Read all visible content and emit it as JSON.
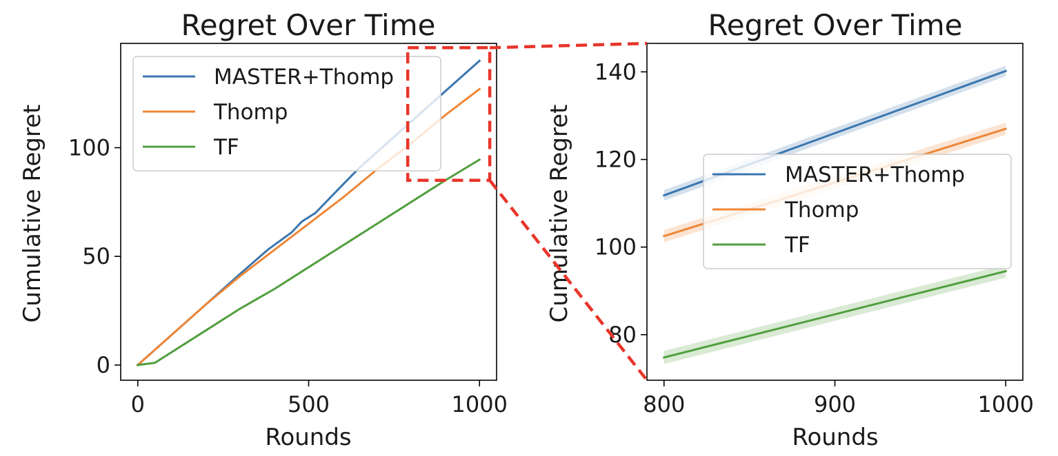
{
  "colors": {
    "series_0": "#3a76af",
    "series_1": "#ef8636",
    "series_2": "#519e3e",
    "zoom_box": "#e8352a"
  },
  "chart_data": [
    {
      "type": "line",
      "title": "Regret Over Time",
      "xlabel": "Rounds",
      "ylabel": "Cumulative Regret",
      "xlim": [
        -50,
        1050
      ],
      "ylim": [
        -7,
        148
      ],
      "xticks": [
        0,
        500,
        1000
      ],
      "yticks": [
        0,
        50,
        100
      ],
      "xtick_labels": [
        "0",
        "500",
        "1000"
      ],
      "ytick_labels": [
        "0",
        "50",
        "100"
      ],
      "grid": false,
      "legend": "upper-left",
      "zoom_region": {
        "x": [
          790,
          1030
        ],
        "y": [
          85,
          146
        ]
      },
      "series": [
        {
          "name": "MASTER+Thomp",
          "x": [
            0,
            100,
            200,
            300,
            380,
            450,
            480,
            520,
            600,
            650,
            700,
            800,
            900,
            1000
          ],
          "y": [
            0,
            14,
            28,
            42,
            53,
            61,
            66,
            70,
            83,
            91,
            98,
            112,
            126,
            140
          ]
        },
        {
          "name": "Thomp",
          "x": [
            0,
            100,
            200,
            300,
            400,
            500,
            600,
            700,
            800,
            900,
            1000
          ],
          "y": [
            0,
            14,
            28,
            41,
            53,
            65,
            77,
            90,
            102,
            115,
            127
          ]
        },
        {
          "name": "TF",
          "x": [
            0,
            50,
            100,
            200,
            300,
            400,
            500,
            600,
            700,
            800,
            900,
            1000
          ],
          "y": [
            0,
            1,
            6,
            16,
            26,
            35,
            45,
            55,
            65,
            75,
            85,
            94.5
          ]
        }
      ]
    },
    {
      "type": "line",
      "title": "Regret Over Time",
      "xlabel": "Rounds",
      "ylabel": "Cumulative Regret",
      "xlim": [
        790,
        1010
      ],
      "ylim": [
        69.6,
        146.5
      ],
      "xticks": [
        800,
        900,
        1000
      ],
      "yticks": [
        80,
        100,
        120,
        140
      ],
      "xtick_labels": [
        "800",
        "900",
        "1000"
      ],
      "ytick_labels": [
        "80",
        "100",
        "120",
        "140"
      ],
      "grid": false,
      "legend": "center-right",
      "band": true,
      "series": [
        {
          "name": "MASTER+Thomp",
          "x": [
            800,
            1000
          ],
          "y": [
            111.8,
            140.2
          ],
          "band_half_width": 1.2
        },
        {
          "name": "Thomp",
          "x": [
            800,
            1000
          ],
          "y": [
            102.5,
            127.0
          ],
          "band_half_width": 1.4
        },
        {
          "name": "TF",
          "x": [
            800,
            1000
          ],
          "y": [
            74.8,
            94.5
          ],
          "band_half_width": 1.5
        }
      ]
    }
  ]
}
